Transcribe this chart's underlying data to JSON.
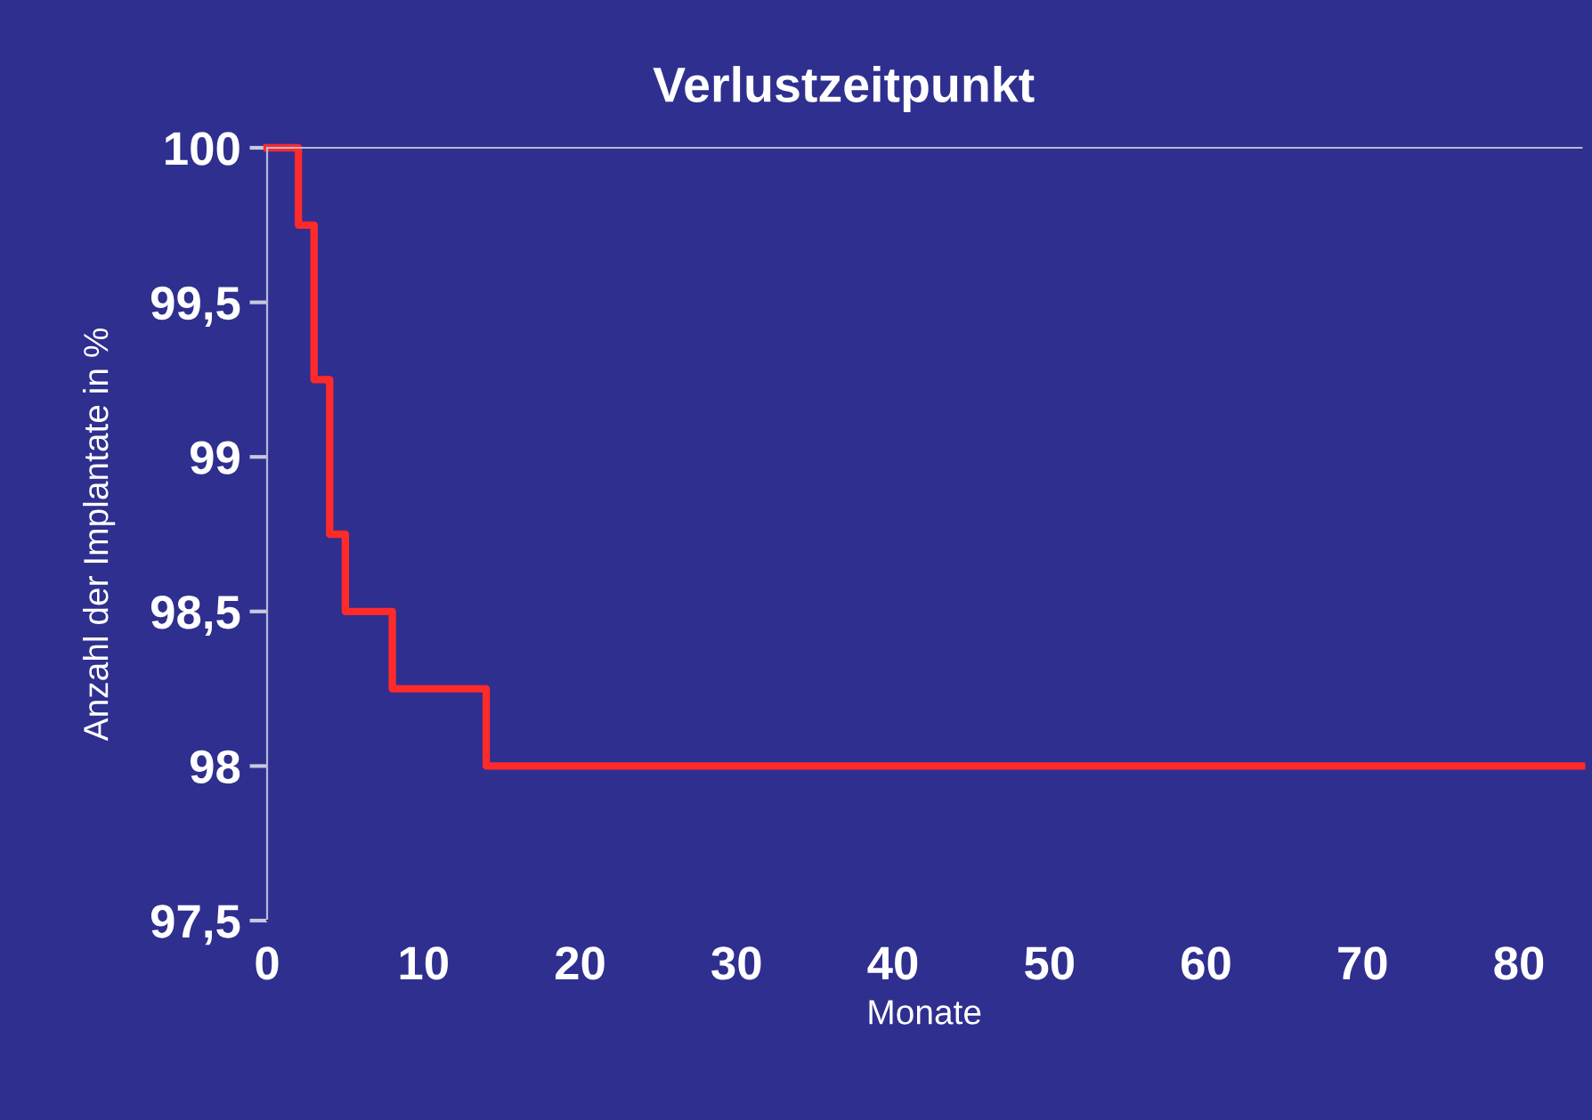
{
  "chart_data": {
    "type": "step",
    "title": "Verlustzeitpunkt",
    "xlabel": "Monate",
    "ylabel": "Anzahl der Implantate in %",
    "x": [
      0,
      2,
      3,
      4,
      5,
      8,
      14,
      84
    ],
    "series": [
      {
        "color": "#ff2a2a",
        "values": [
          100,
          99.75,
          99.25,
          98.75,
          98.5,
          98.25,
          98,
          98
        ]
      }
    ],
    "xlim": [
      0,
      84
    ],
    "ylim": [
      97.5,
      100
    ],
    "xticks": [
      0,
      10,
      20,
      30,
      40,
      50,
      60,
      70,
      80
    ],
    "yticks": [
      {
        "value": 97.5,
        "label": "97,5"
      },
      98,
      {
        "value": 98.5,
        "label": "98,5"
      },
      99,
      {
        "value": 99.5,
        "label": "99,5"
      },
      100
    ],
    "grid": false,
    "legend": false,
    "marker": "none",
    "line_style": "solid"
  }
}
